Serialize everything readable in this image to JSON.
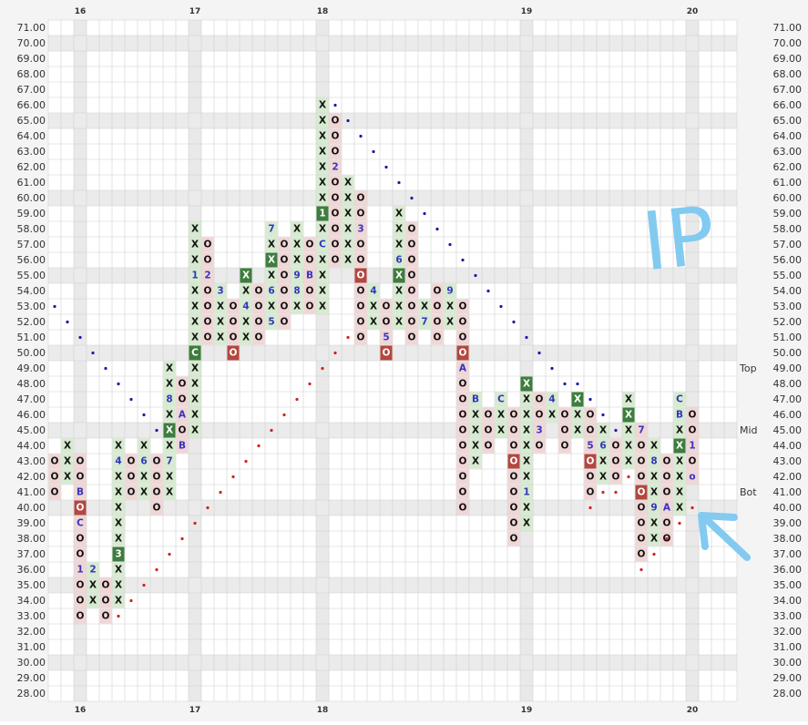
{
  "chart_data": {
    "type": "point-and-figure",
    "annotation": "IP",
    "xticks": [
      {
        "value": 2,
        "label": "16"
      },
      {
        "value": 11,
        "label": "17"
      },
      {
        "value": 21,
        "label": "18"
      },
      {
        "value": 37,
        "label": "19"
      },
      {
        "value": 50,
        "label": "20"
      }
    ],
    "ylim": [
      28,
      71
    ],
    "yticks": [
      {
        "value": 71,
        "label": "71.00"
      },
      {
        "value": 70,
        "label": "70.00"
      },
      {
        "value": 69,
        "label": "69.00"
      },
      {
        "value": 68,
        "label": "68.00"
      },
      {
        "value": 67,
        "label": "67.00"
      },
      {
        "value": 66,
        "label": "66.00"
      },
      {
        "value": 65,
        "label": "65.00"
      },
      {
        "value": 64,
        "label": "64.00"
      },
      {
        "value": 63,
        "label": "63.00"
      },
      {
        "value": 62,
        "label": "62.00"
      },
      {
        "value": 61,
        "label": "61.00"
      },
      {
        "value": 60,
        "label": "60.00"
      },
      {
        "value": 59,
        "label": "59.00"
      },
      {
        "value": 58,
        "label": "58.00"
      },
      {
        "value": 57,
        "label": "57.00"
      },
      {
        "value": 56,
        "label": "56.00"
      },
      {
        "value": 55,
        "label": "55.00"
      },
      {
        "value": 54,
        "label": "54.00"
      },
      {
        "value": 53,
        "label": "53.00"
      },
      {
        "value": 52,
        "label": "52.00"
      },
      {
        "value": 51,
        "label": "51.00"
      },
      {
        "value": 50,
        "label": "50.00"
      },
      {
        "value": 49,
        "label": "49.00"
      },
      {
        "value": 48,
        "label": "48.00"
      },
      {
        "value": 47,
        "label": "47.00"
      },
      {
        "value": 46,
        "label": "46.00"
      },
      {
        "value": 45,
        "label": "45.00"
      },
      {
        "value": 44,
        "label": "44.00"
      },
      {
        "value": 43,
        "label": "43.00"
      },
      {
        "value": 42,
        "label": "42.00"
      },
      {
        "value": 41,
        "label": "41.00"
      },
      {
        "value": 40,
        "label": "40.00"
      },
      {
        "value": 39,
        "label": "39.00"
      },
      {
        "value": 38,
        "label": "38.00"
      },
      {
        "value": 37,
        "label": "37.00"
      },
      {
        "value": 36,
        "label": "36.00"
      },
      {
        "value": 35,
        "label": "35.00"
      },
      {
        "value": 34,
        "label": "34.00"
      },
      {
        "value": 33,
        "label": "33.00"
      },
      {
        "value": 32,
        "label": "32.00"
      },
      {
        "value": 31,
        "label": "31.00"
      },
      {
        "value": 30,
        "label": "30.00"
      },
      {
        "value": 29,
        "label": "29.00"
      },
      {
        "value": 28,
        "label": "28.00"
      }
    ],
    "levels": [
      {
        "label": "Top",
        "value": 49
      },
      {
        "label": "Mid",
        "value": 45
      },
      {
        "label": "Bot",
        "value": 41
      }
    ],
    "colors": {
      "X": "#d6ebcf",
      "O": "#f1d6d6",
      "dark_X": "#3d7d3d",
      "dark_O": "#b4473f",
      "marker": "#3535c0"
    },
    "columns": [
      {
        "kind": "O",
        "top": 43,
        "cells": [
          "O",
          "O",
          "O"
        ],
        "dark": []
      },
      {
        "kind": "X",
        "top": 44,
        "cells": [
          "X",
          "X",
          "X"
        ],
        "dark": []
      },
      {
        "kind": "O",
        "top": 43,
        "cells": [
          "O",
          "O",
          "B",
          "O",
          "C",
          "O",
          "O",
          "1",
          "O",
          "O",
          "O"
        ],
        "dark": [
          40
        ]
      },
      {
        "kind": "X",
        "top": 36,
        "cells": [
          "2",
          "X",
          "X"
        ],
        "dark": []
      },
      {
        "kind": "O",
        "top": 35,
        "cells": [
          "O",
          "O",
          "O"
        ],
        "dark": []
      },
      {
        "kind": "X",
        "top": 44,
        "cells": [
          "X",
          "4",
          "X",
          "X",
          "X",
          "X",
          "X",
          "3",
          "X",
          "X",
          "X"
        ],
        "dark": [
          37
        ]
      },
      {
        "kind": "O",
        "top": 43,
        "cells": [
          "O",
          "O",
          "O"
        ],
        "dark": []
      },
      {
        "kind": "X",
        "top": 44,
        "cells": [
          "X",
          "6",
          "X",
          "X"
        ],
        "dark": []
      },
      {
        "kind": "O",
        "top": 43,
        "cells": [
          "O",
          "O",
          "O",
          "O"
        ],
        "dark": []
      },
      {
        "kind": "X",
        "top": 49,
        "cells": [
          "X",
          "X",
          "8",
          "X",
          "X",
          "X",
          "7",
          "X",
          "X"
        ],
        "dark": [
          45
        ]
      },
      {
        "kind": "O",
        "top": 48,
        "cells": [
          "O",
          "O",
          "A",
          "O",
          "B"
        ],
        "dark": []
      },
      {
        "kind": "X",
        "top": 58,
        "cells": [
          "X",
          "X",
          "X",
          "1",
          "X",
          "X",
          "X",
          "X",
          "C",
          "X",
          "X",
          "X",
          "X",
          "X"
        ],
        "dark": [
          50
        ]
      },
      {
        "kind": "O",
        "top": 57,
        "cells": [
          "O",
          "O",
          "2",
          "O",
          "O",
          "O",
          "O"
        ],
        "dark": []
      },
      {
        "kind": "X",
        "top": 54,
        "cells": [
          "3",
          "X",
          "X",
          "X"
        ],
        "dark": []
      },
      {
        "kind": "O",
        "top": 53,
        "cells": [
          "O",
          "O",
          "O",
          "O"
        ],
        "dark": [
          50
        ]
      },
      {
        "kind": "X",
        "top": 55,
        "cells": [
          "X",
          "X",
          "4",
          "X",
          "X"
        ],
        "dark": [
          55
        ]
      },
      {
        "kind": "O",
        "top": 54,
        "cells": [
          "O",
          "O",
          "O",
          "O"
        ],
        "dark": []
      },
      {
        "kind": "X",
        "top": 58,
        "cells": [
          "7",
          "X",
          "X",
          "X",
          "6",
          "X",
          "5"
        ],
        "dark": [
          56
        ]
      },
      {
        "kind": "O",
        "top": 57,
        "cells": [
          "O",
          "O",
          "O",
          "O",
          "O",
          "O"
        ],
        "dark": []
      },
      {
        "kind": "X",
        "top": 58,
        "cells": [
          "X",
          "X",
          "X",
          "9",
          "8",
          "X"
        ],
        "dark": []
      },
      {
        "kind": "O",
        "top": 57,
        "cells": [
          "O",
          "O",
          "B",
          "O",
          "O"
        ],
        "dark": []
      },
      {
        "kind": "X",
        "top": 66,
        "cells": [
          "X",
          "X",
          "X",
          "X",
          "X",
          "X",
          "X",
          "1",
          "X",
          "C",
          "X",
          "X",
          "X",
          "X"
        ],
        "dark": [
          59
        ]
      },
      {
        "kind": "O",
        "top": 65,
        "cells": [
          "O",
          "O",
          "O",
          "2",
          "O",
          "O",
          "O",
          "O",
          "O",
          "O"
        ],
        "dark": []
      },
      {
        "kind": "X",
        "top": 61,
        "cells": [
          "X",
          "X",
          "X",
          "X",
          "X",
          "X"
        ],
        "dark": []
      },
      {
        "kind": "O",
        "top": 60,
        "cells": [
          "O",
          "O",
          "3",
          "O",
          "O",
          "O",
          "O",
          "O",
          "O",
          "O"
        ],
        "dark": [
          55
        ]
      },
      {
        "kind": "X",
        "top": 54,
        "cells": [
          "4",
          "X",
          "X"
        ],
        "dark": []
      },
      {
        "kind": "O",
        "top": 53,
        "cells": [
          "O",
          "O",
          "5",
          "O"
        ],
        "dark": [
          50
        ]
      },
      {
        "kind": "X",
        "top": 59,
        "cells": [
          "X",
          "X",
          "X",
          "6",
          "X",
          "X",
          "X",
          "X"
        ],
        "dark": [
          55
        ]
      },
      {
        "kind": "O",
        "top": 58,
        "cells": [
          "O",
          "O",
          "O",
          "O",
          "O",
          "O",
          "O",
          "O"
        ],
        "dark": []
      },
      {
        "kind": "X",
        "top": 53,
        "cells": [
          "X",
          "7"
        ],
        "dark": []
      },
      {
        "kind": "O",
        "top": 54,
        "cells": [
          "O",
          "O",
          "O",
          "O"
        ],
        "dark": []
      },
      {
        "kind": "X",
        "top": 54,
        "cells": [
          "9",
          "X",
          "X"
        ],
        "dark": []
      },
      {
        "kind": "O",
        "top": 53,
        "cells": [
          "O",
          "O",
          "O",
          "O",
          "A",
          "O",
          "O",
          "O",
          "O",
          "O",
          "O",
          "O",
          "O",
          "O"
        ],
        "dark": [
          50
        ]
      },
      {
        "kind": "X",
        "top": 47,
        "cells": [
          "B",
          "X",
          "X",
          "X",
          "X"
        ],
        "dark": []
      },
      {
        "kind": "O",
        "top": 46,
        "cells": [
          "O",
          "O",
          "O"
        ],
        "dark": []
      },
      {
        "kind": "X",
        "top": 47,
        "cells": [
          "C",
          "X",
          "X"
        ],
        "dark": []
      },
      {
        "kind": "O",
        "top": 46,
        "cells": [
          "O",
          "O",
          "O",
          "O",
          "O",
          "O",
          "O",
          "O",
          "O"
        ],
        "dark": [
          43
        ]
      },
      {
        "kind": "X",
        "top": 48,
        "cells": [
          "X",
          "X",
          "X",
          "X",
          "X",
          "X",
          "X",
          "1",
          "X",
          "X"
        ],
        "dark": [
          48
        ]
      },
      {
        "kind": "O",
        "top": 47,
        "cells": [
          "O",
          "O",
          "3",
          "O"
        ],
        "dark": []
      },
      {
        "kind": "X",
        "top": 47,
        "cells": [
          "4",
          "X"
        ],
        "dark": []
      },
      {
        "kind": "O",
        "top": 46,
        "cells": [
          "O",
          "O",
          "O"
        ],
        "dark": []
      },
      {
        "kind": "X",
        "top": 47,
        "cells": [
          "X",
          "X",
          "X"
        ],
        "dark": [
          47
        ]
      },
      {
        "kind": "O",
        "top": 46,
        "cells": [
          "O",
          "O",
          "5",
          "O",
          "O",
          "O"
        ],
        "dark": [
          43
        ]
      },
      {
        "kind": "X",
        "top": 45,
        "cells": [
          "X",
          "6",
          "X",
          "X"
        ],
        "dark": []
      },
      {
        "kind": "O",
        "top": 44,
        "cells": [
          "O",
          "O",
          "O"
        ],
        "dark": []
      },
      {
        "kind": "X",
        "top": 47,
        "cells": [
          "X",
          "X",
          "X",
          "X",
          "X"
        ],
        "dark": [
          46
        ]
      },
      {
        "kind": "O",
        "top": 45,
        "cells": [
          "7",
          "O",
          "O",
          "O",
          "O",
          "O",
          "O",
          "O",
          "O"
        ],
        "dark": [
          41
        ]
      },
      {
        "kind": "X",
        "top": 44,
        "cells": [
          "X",
          "8",
          "X",
          "X",
          "9",
          "X",
          "X"
        ],
        "dark": []
      },
      {
        "kind": "O",
        "top": 43,
        "cells": [
          "O",
          "O",
          "O",
          "A",
          "O",
          "O"
        ],
        "dark": []
      },
      {
        "kind": "X",
        "top": 47,
        "cells": [
          "C",
          "B",
          "X",
          "X",
          "X",
          "X",
          "X",
          "X"
        ],
        "dark": [
          44
        ]
      },
      {
        "kind": "O",
        "top": 46,
        "cells": [
          "O",
          "O",
          "1",
          "O",
          "o"
        ],
        "dark": []
      }
    ],
    "trend_lines": [
      {
        "color": "#1b1ba8",
        "points": [
          [
            0,
            53
          ],
          [
            1,
            52
          ],
          [
            2,
            51
          ],
          [
            3,
            50
          ],
          [
            4,
            49
          ],
          [
            5,
            48
          ],
          [
            6,
            47
          ],
          [
            7,
            46
          ],
          [
            8,
            45
          ]
        ]
      },
      {
        "color": "#1b1ba8",
        "points": [
          [
            22,
            66
          ],
          [
            23,
            65
          ],
          [
            24,
            64
          ],
          [
            25,
            63
          ],
          [
            26,
            62
          ],
          [
            27,
            61
          ],
          [
            28,
            60
          ],
          [
            29,
            59
          ],
          [
            30,
            58
          ],
          [
            31,
            57
          ],
          [
            32,
            56
          ],
          [
            33,
            55
          ],
          [
            34,
            54
          ],
          [
            35,
            53
          ],
          [
            36,
            52
          ],
          [
            37,
            51
          ],
          [
            38,
            50
          ],
          [
            39,
            49
          ],
          [
            40,
            48
          ],
          [
            41,
            48
          ],
          [
            42,
            47
          ],
          [
            43,
            46
          ],
          [
            44,
            45
          ]
        ]
      },
      {
        "color": "#d22020",
        "points": [
          [
            5,
            33
          ],
          [
            6,
            34
          ],
          [
            7,
            35
          ],
          [
            8,
            36
          ],
          [
            9,
            37
          ],
          [
            10,
            38
          ],
          [
            11,
            39
          ],
          [
            12,
            40
          ],
          [
            13,
            41
          ],
          [
            14,
            42
          ],
          [
            15,
            43
          ],
          [
            16,
            44
          ],
          [
            17,
            45
          ],
          [
            18,
            46
          ],
          [
            19,
            47
          ],
          [
            20,
            48
          ],
          [
            21,
            49
          ],
          [
            22,
            50
          ],
          [
            23,
            51
          ]
        ]
      },
      {
        "color": "#d22020",
        "points": [
          [
            42,
            40
          ],
          [
            43,
            41
          ],
          [
            44,
            41
          ],
          [
            45,
            42
          ],
          [
            46,
            36
          ],
          [
            47,
            37
          ],
          [
            48,
            38
          ],
          [
            49,
            39
          ],
          [
            50,
            40
          ]
        ]
      }
    ]
  }
}
